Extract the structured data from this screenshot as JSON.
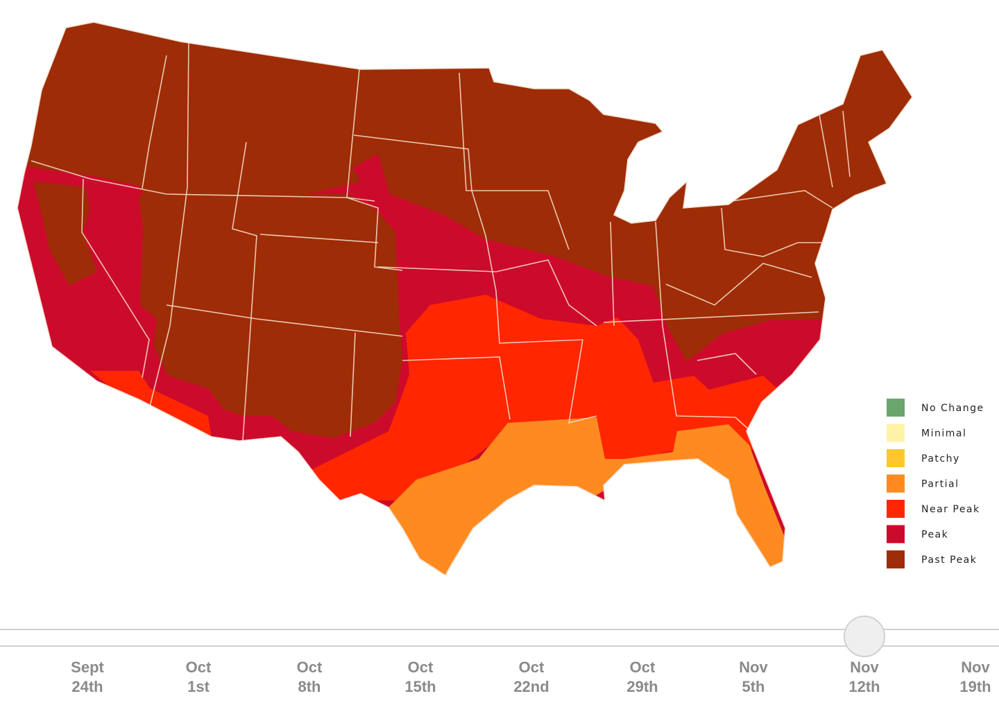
{
  "legend": {
    "items": [
      {
        "label": "No Change",
        "color": "#6aa56d"
      },
      {
        "label": "Minimal",
        "color": "#fff3a8"
      },
      {
        "label": "Patchy",
        "color": "#ffc72c"
      },
      {
        "label": "Partial",
        "color": "#ff8a1f"
      },
      {
        "label": "Near Peak",
        "color": "#ff2600"
      },
      {
        "label": "Peak",
        "color": "#cc0a2c"
      },
      {
        "label": "Past Peak",
        "color": "#9e2c06"
      }
    ]
  },
  "timeline": {
    "dates": [
      {
        "month": "Sept",
        "day": "24th"
      },
      {
        "month": "Oct",
        "day": "1st"
      },
      {
        "month": "Oct",
        "day": "8th"
      },
      {
        "month": "Oct",
        "day": "15th"
      },
      {
        "month": "Oct",
        "day": "22nd"
      },
      {
        "month": "Oct",
        "day": "29th"
      },
      {
        "month": "Nov",
        "day": "5th"
      },
      {
        "month": "Nov",
        "day": "12th"
      },
      {
        "month": "Nov",
        "day": "19th"
      }
    ],
    "selected": 7
  }
}
